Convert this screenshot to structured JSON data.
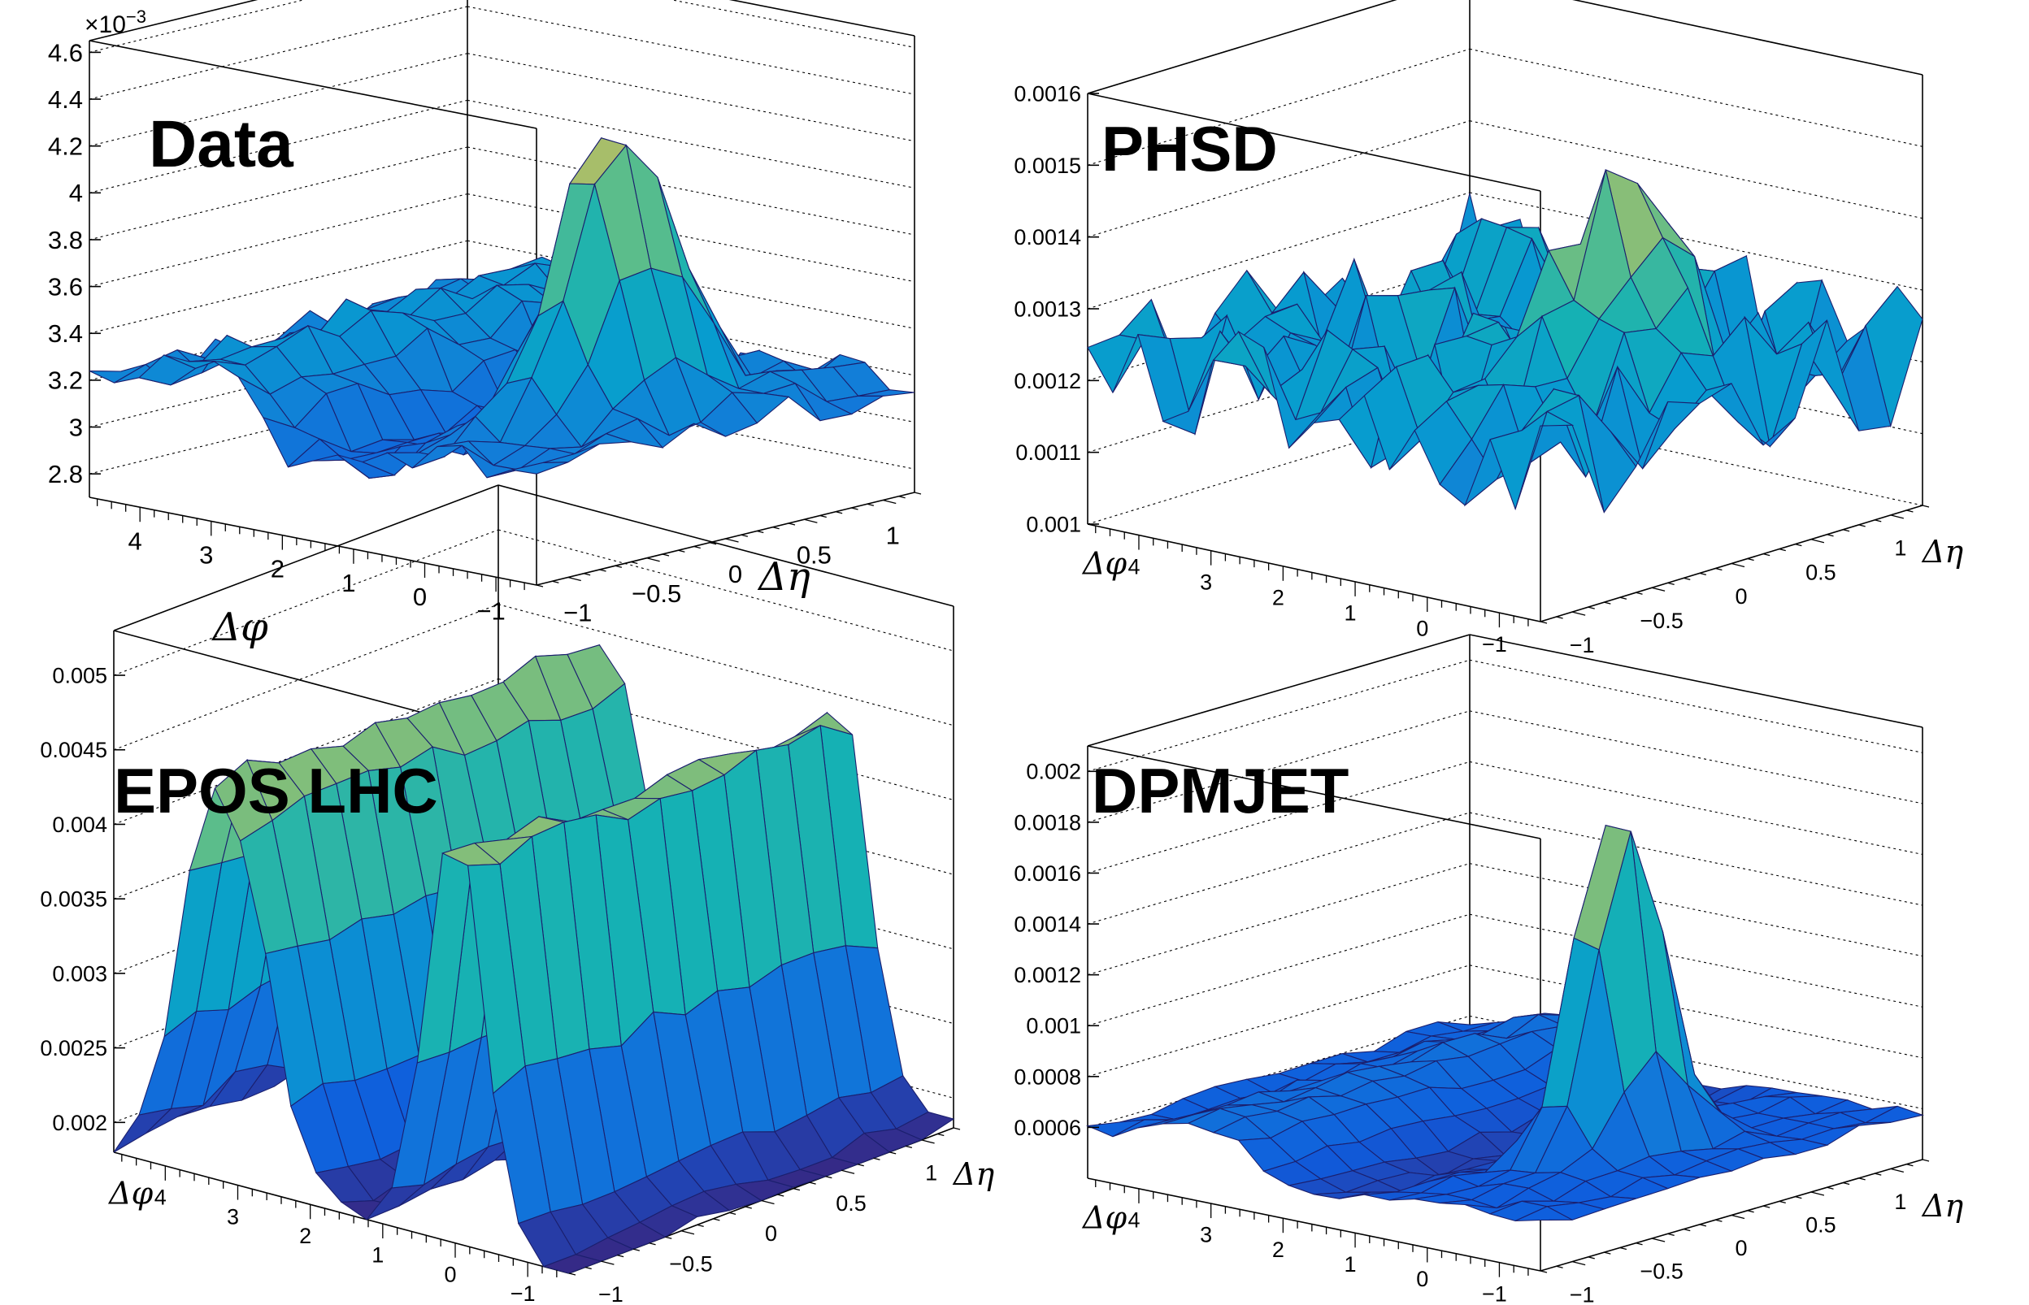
{
  "chart_data": [
    {
      "type": "surface",
      "title": "Data",
      "xlabel": "Δφ",
      "ylabel": "Δη",
      "z_exponent_label": "×10",
      "z_exponent_power": "−3",
      "xlim": [
        -1.57,
        4.71
      ],
      "ylim": [
        -1.2,
        1.2
      ],
      "zlim": [
        2.7,
        4.65
      ],
      "z_ticks": [
        "2.8",
        "3",
        "3.2",
        "3.4",
        "3.6",
        "3.8",
        "4",
        "4.2",
        "4.4",
        "4.6"
      ],
      "z_tick_values": [
        2.8,
        3.0,
        3.2,
        3.4,
        3.6,
        3.8,
        4.0,
        4.2,
        4.4,
        4.6
      ],
      "x_ticks": [
        "−1",
        "0",
        "1",
        "2",
        "3",
        "4"
      ],
      "y_ticks": [
        "−1",
        "−0.5",
        "0",
        "0.5",
        "1"
      ],
      "model": {
        "base": 3.18,
        "peak": 1.25,
        "peak_sx": 0.45,
        "peak_sy": 0.32,
        "ridge": 0.22,
        "ridge_sy": 3.0,
        "noise": 0.08,
        "dip": -0.25
      },
      "grid": true,
      "colormap": "parula"
    },
    {
      "type": "surface",
      "title": "PHSD",
      "xlabel": "Δφ",
      "ylabel": "Δη",
      "xlim": [
        -1.57,
        4.71
      ],
      "ylim": [
        -1.2,
        1.2
      ],
      "zlim": [
        0.001,
        0.0016
      ],
      "z_ticks": [
        "0.001",
        "0.0011",
        "0.0012",
        "0.0013",
        "0.0014",
        "0.0015",
        "0.0016"
      ],
      "z_tick_values": [
        0.001,
        0.0011,
        0.0012,
        0.0013,
        0.0014,
        0.0015,
        0.0016
      ],
      "x_ticks": [
        "−1",
        "0",
        "1",
        "2",
        "3",
        "4"
      ],
      "y_ticks": [
        "−1",
        "−0.5",
        "0",
        "0.5",
        "1"
      ],
      "model": {
        "base": 0.00121,
        "peak": 0.00024,
        "peak_sx": 0.5,
        "peak_sy": 0.35,
        "ridge": 2e-05,
        "ridge_sy": 3.0,
        "noise": 9e-05,
        "dip": 0.0
      },
      "grid": true,
      "colormap": "parula"
    },
    {
      "type": "surface",
      "title": "EPOS LHC",
      "xlabel": "Δφ",
      "ylabel": "Δη",
      "xlim": [
        -1.57,
        4.71
      ],
      "ylim": [
        -1.2,
        1.2
      ],
      "zlim": [
        0.0018,
        0.0053
      ],
      "z_ticks": [
        "0.002",
        "0.0025",
        "0.003",
        "0.0035",
        "0.004",
        "0.0045",
        "0.005"
      ],
      "z_tick_values": [
        0.002,
        0.0025,
        0.003,
        0.0035,
        0.004,
        0.0045,
        0.005
      ],
      "x_ticks": [
        "−1",
        "0",
        "1",
        "2",
        "3",
        "4"
      ],
      "y_ticks": [
        "−1",
        "−0.5",
        "0",
        "0.5",
        "1"
      ],
      "model": {
        "base": 0.0018,
        "ridges": true,
        "amp": 0.0028,
        "noise": 8e-05
      },
      "grid": true,
      "colormap": "parula"
    },
    {
      "type": "surface",
      "title": "DPMJET",
      "xlabel": "Δφ",
      "ylabel": "Δη",
      "xlim": [
        -1.57,
        4.71
      ],
      "ylim": [
        -1.2,
        1.2
      ],
      "zlim": [
        0.0004,
        0.0021
      ],
      "z_ticks": [
        "0.0006",
        "0.0008",
        "0.001",
        "0.0012",
        "0.0014",
        "0.0016",
        "0.0018",
        "0.002"
      ],
      "z_tick_values": [
        0.0006,
        0.0008,
        0.001,
        0.0012,
        0.0014,
        0.0016,
        0.0018,
        0.002
      ],
      "x_ticks": [
        "−1",
        "0",
        "1",
        "2",
        "3",
        "4"
      ],
      "y_ticks": [
        "−1",
        "−0.5",
        "0",
        "0.5",
        "1"
      ],
      "model": {
        "base": 0.00058,
        "peak": 0.00148,
        "peak_sx": 0.32,
        "peak_sy": 0.22,
        "ridge": 0.00012,
        "ridge_sy": 3.0,
        "noise": 3e-05,
        "dip": -0.00012
      },
      "grid": true,
      "colormap": "parula"
    }
  ]
}
